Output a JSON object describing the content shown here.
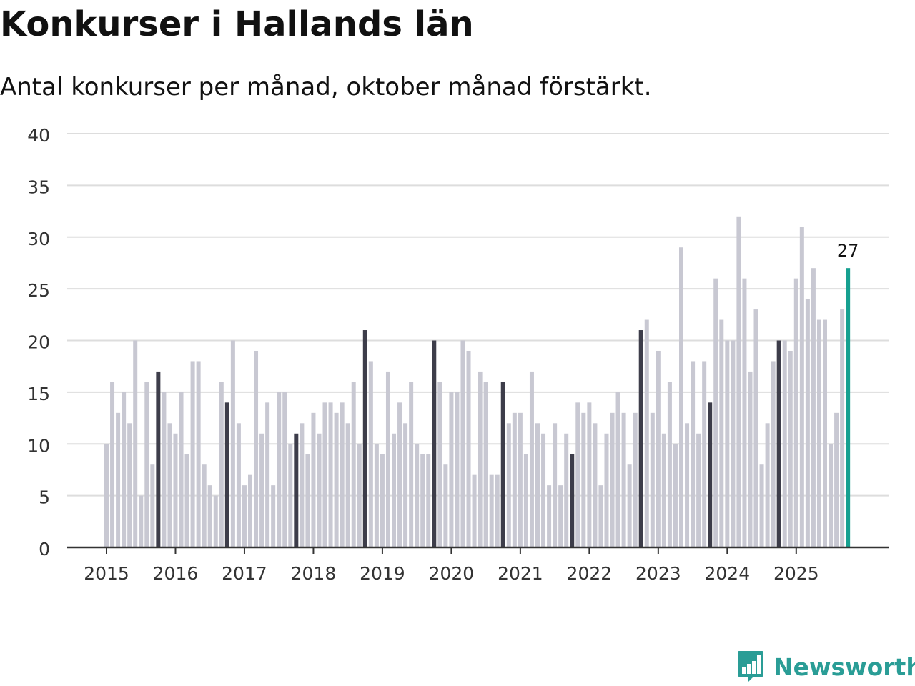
{
  "title": "Konkurser i Hallands län",
  "subtitle": "Antal konkurser per månad, oktober månad förstärkt.",
  "brand": {
    "name": "Newsworthy",
    "icon": "newsworthy-logo-icon",
    "color": "#2a9d96"
  },
  "colors": {
    "normal": "#c8c8d2",
    "highlight": "#3d3d4a",
    "latest": "#16a090",
    "grid": "#dddddd",
    "axis": "#333333"
  },
  "chart_data": {
    "type": "bar",
    "title": "Konkurser i Hallands län",
    "subtitle": "Antal konkurser per månad, oktober månad förstärkt.",
    "xlabel": "",
    "ylabel": "",
    "ylim": [
      0,
      40
    ],
    "yticks": [
      "0",
      "5",
      "10",
      "15",
      "20",
      "25",
      "30",
      "35",
      "40"
    ],
    "start_year": 2015,
    "start_month": 1,
    "xtick_labels": [
      "2015",
      "2016",
      "2017",
      "2018",
      "2019",
      "2020",
      "2021",
      "2022",
      "2023",
      "2024",
      "2025"
    ],
    "highlight_month": 10,
    "values": [
      10,
      16,
      13,
      15,
      12,
      20,
      5,
      16,
      8,
      17,
      15,
      12,
      11,
      15,
      9,
      18,
      18,
      8,
      6,
      5,
      16,
      14,
      20,
      12,
      6,
      7,
      19,
      11,
      14,
      6,
      15,
      15,
      10,
      11,
      12,
      9,
      13,
      11,
      14,
      14,
      13,
      14,
      12,
      16,
      10,
      21,
      18,
      10,
      9,
      17,
      11,
      14,
      12,
      16,
      10,
      9,
      9,
      20,
      16,
      8,
      15,
      15,
      20,
      19,
      7,
      17,
      16,
      7,
      7,
      16,
      12,
      13,
      13,
      9,
      17,
      12,
      11,
      6,
      12,
      6,
      11,
      9,
      14,
      13,
      14,
      12,
      6,
      11,
      13,
      15,
      13,
      8,
      13,
      21,
      22,
      13,
      19,
      11,
      16,
      10,
      29,
      12,
      18,
      11,
      18,
      14,
      26,
      22,
      20,
      20,
      32,
      26,
      17,
      23,
      8,
      12,
      18,
      20,
      20,
      19,
      26,
      31,
      24,
      27,
      22,
      22,
      10,
      13,
      23,
      27
    ],
    "latest_label": "27"
  }
}
